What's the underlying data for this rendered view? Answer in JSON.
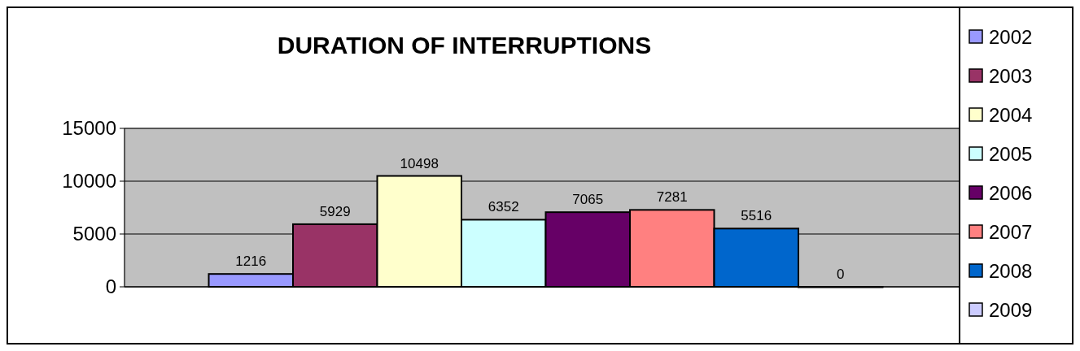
{
  "chart_data": {
    "type": "bar",
    "title": "DURATION OF INTERRUPTIONS",
    "categories": [
      null
    ],
    "series": [
      {
        "name": "2002",
        "color": "#9999ff",
        "values": [
          1216
        ]
      },
      {
        "name": "2003",
        "color": "#993366",
        "values": [
          5929
        ]
      },
      {
        "name": "2004",
        "color": "#ffffcc",
        "values": [
          10498
        ]
      },
      {
        "name": "2005",
        "color": "#ccffff",
        "values": [
          6352
        ]
      },
      {
        "name": "2006",
        "color": "#660066",
        "values": [
          7065
        ]
      },
      {
        "name": "2007",
        "color": "#ff8080",
        "values": [
          7281
        ]
      },
      {
        "name": "2008",
        "color": "#0066cc",
        "values": [
          5516
        ]
      },
      {
        "name": "2009",
        "color": "#ccccff",
        "values": [
          0
        ]
      }
    ],
    "ylim": [
      0,
      15000
    ],
    "yticks": [
      0,
      5000,
      10000,
      15000
    ],
    "grid": "y",
    "data_labels": true,
    "legend": "right"
  }
}
